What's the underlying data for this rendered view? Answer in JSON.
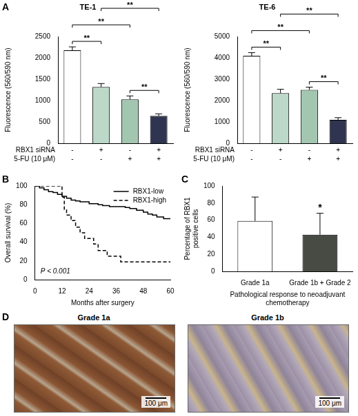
{
  "chart_data": [
    {
      "panel": "A",
      "type": "bar",
      "title": "TE-1",
      "y_label": "Fluorescence (560/590 nm)",
      "categories": [
        null,
        null,
        null,
        null
      ],
      "x_table": [
        {
          "label": "RBX1 siRNA",
          "values": [
            "-",
            "+",
            "-",
            "+"
          ]
        },
        {
          "label": "5-FU (10 μM)",
          "values": [
            "-",
            "-",
            "+",
            "+"
          ]
        }
      ],
      "values": [
        2180,
        1320,
        1030,
        640
      ],
      "errors": [
        80,
        80,
        80,
        50
      ],
      "colors": [
        "#ffffff",
        "#bcd8c8",
        "#a3c6b0",
        "#2f3450"
      ],
      "ylim": [
        0,
        2500
      ],
      "yticks": [
        0,
        500,
        1000,
        1500,
        2000,
        2500
      ],
      "grid": false,
      "comparisons": [
        {
          "between": [
            0,
            1
          ],
          "text": "**"
        },
        {
          "between": [
            0,
            2
          ],
          "text": "**"
        },
        {
          "between": [
            1,
            3
          ],
          "text": "**"
        },
        {
          "between": [
            2,
            3
          ],
          "text": "**"
        }
      ]
    },
    {
      "type": "bar",
      "title": "TE-6",
      "y_label": "Fluorescence (560/590 nm)",
      "categories": [
        null,
        null,
        null,
        null
      ],
      "x_table": [
        {
          "label": "RBX1 siRNA",
          "values": [
            "-",
            "+",
            "-",
            "+"
          ]
        },
        {
          "label": "5-FU (10 μM)",
          "values": [
            "-",
            "-",
            "+",
            "+"
          ]
        }
      ],
      "values": [
        4100,
        2350,
        2500,
        1100
      ],
      "errors": [
        150,
        180,
        130,
        100
      ],
      "colors": [
        "#ffffff",
        "#bcd8c8",
        "#a3c6b0",
        "#2f3450"
      ],
      "ylim": [
        0,
        5000
      ],
      "yticks": [
        0,
        1000,
        2000,
        3000,
        4000,
        5000
      ],
      "grid": false,
      "comparisons": [
        {
          "between": [
            0,
            1
          ],
          "text": "**"
        },
        {
          "between": [
            0,
            2
          ],
          "text": "**"
        },
        {
          "between": [
            1,
            3
          ],
          "text": "**"
        },
        {
          "between": [
            2,
            3
          ],
          "text": "**"
        }
      ]
    },
    {
      "panel": "B",
      "type": "line",
      "x_label": "Months after surgery",
      "y_label": "Overall survival (%)",
      "xlim": [
        0,
        60
      ],
      "xticks": [
        0,
        12,
        24,
        36,
        48,
        60
      ],
      "ylim": [
        0,
        100
      ],
      "yticks": [
        0,
        20,
        40,
        60,
        80,
        100
      ],
      "grid": false,
      "legend": "top right",
      "annotation": "P < 0.001",
      "series": [
        {
          "name": "RBX1-low",
          "color": "#000000",
          "line_style": "solid",
          "x": [
            0,
            2,
            4,
            6,
            8,
            10,
            12,
            14,
            16,
            18,
            20,
            24,
            28,
            30,
            33,
            40,
            42,
            45,
            48,
            50,
            52,
            54,
            57,
            60
          ],
          "values": [
            100,
            98,
            96,
            94,
            93,
            91,
            89,
            87,
            85,
            84,
            83,
            81,
            80,
            79,
            78,
            77,
            76,
            74,
            72,
            70,
            69,
            67,
            65,
            65
          ]
        },
        {
          "name": "RBX1-high",
          "color": "#000000",
          "line_style": "dashed",
          "x": [
            0,
            11,
            12,
            13,
            14,
            16,
            18,
            20,
            22,
            26,
            28,
            32,
            38,
            60
          ],
          "values": [
            100,
            100,
            88,
            75,
            69,
            63,
            56,
            50,
            44,
            38,
            31,
            25,
            19,
            19
          ]
        }
      ]
    },
    {
      "panel": "C",
      "type": "bar",
      "categories": [
        "Grade 1a",
        "Grade 1b + Grade 2"
      ],
      "values": [
        59,
        43
      ],
      "errors": [
        28,
        25
      ],
      "colors": [
        "#ffffff",
        "#484b44"
      ],
      "x_label": "Pathological response to neoadjuvant chemotherapy",
      "y_label": "Percentage of RBX1 positive cells",
      "ylim": [
        0,
        100
      ],
      "yticks": [
        0,
        20,
        40,
        60,
        80,
        100
      ],
      "grid": false,
      "annotations": [
        {
          "category": "Grade 1b + Grade 2",
          "text": "*"
        }
      ]
    }
  ],
  "images": {
    "panel": "D",
    "items": [
      {
        "title": "Grade 1a",
        "scale_bar": "100 μm"
      },
      {
        "title": "Grade 1b",
        "scale_bar": "100 μm"
      }
    ]
  }
}
